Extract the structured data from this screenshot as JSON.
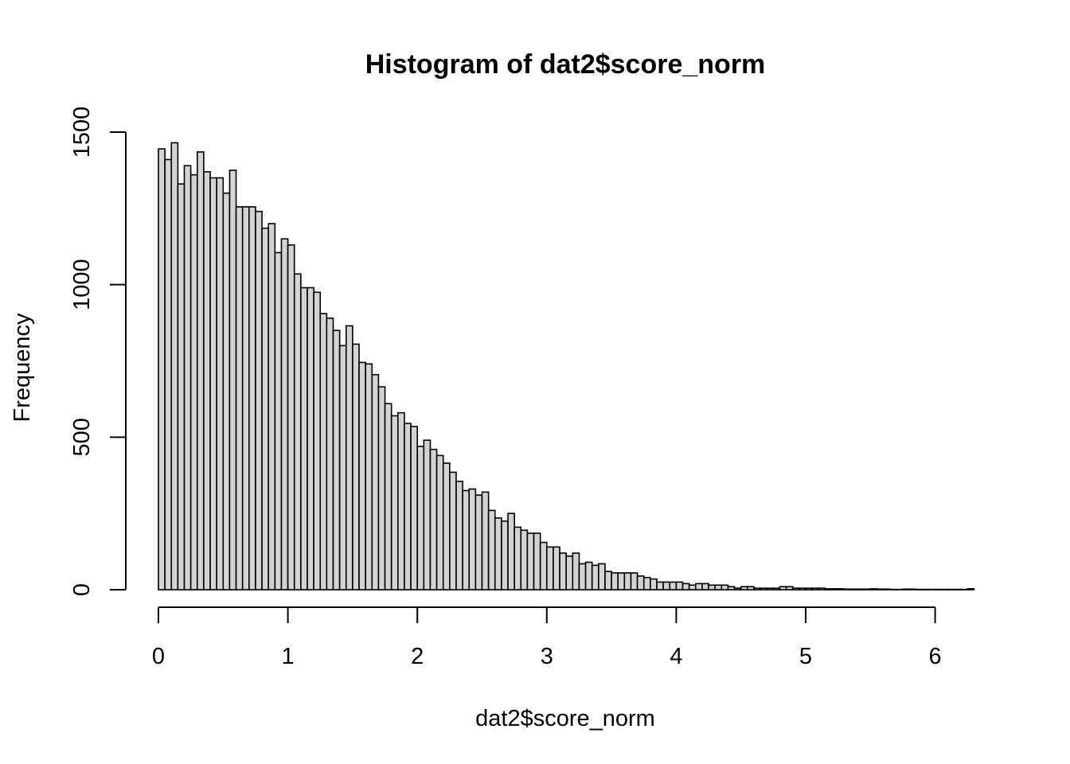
{
  "chart_data": {
    "type": "bar",
    "title": "Histogram of dat2$score_norm",
    "xlabel": "dat2$score_norm",
    "ylabel": "Frequency",
    "xlim": [
      0,
      6.3
    ],
    "ylim": [
      0,
      1500
    ],
    "bin_width": 0.05,
    "grid": false,
    "bar_fill": "#d3d3d3",
    "bar_stroke": "#000000",
    "x_ticks": [
      "0",
      "1",
      "2",
      "3",
      "4",
      "5",
      "6"
    ],
    "y_ticks": [
      "0",
      "500",
      "1000",
      "1500"
    ],
    "bins_start": [
      0.0,
      0.05,
      0.1,
      0.15,
      0.2,
      0.25,
      0.3,
      0.35,
      0.4,
      0.45,
      0.5,
      0.55,
      0.6,
      0.65,
      0.7,
      0.75,
      0.8,
      0.85,
      0.9,
      0.95,
      1.0,
      1.05,
      1.1,
      1.15,
      1.2,
      1.25,
      1.3,
      1.35,
      1.4,
      1.45,
      1.5,
      1.55,
      1.6,
      1.65,
      1.7,
      1.75,
      1.8,
      1.85,
      1.9,
      1.95,
      2.0,
      2.05,
      2.1,
      2.15,
      2.2,
      2.25,
      2.3,
      2.35,
      2.4,
      2.45,
      2.5,
      2.55,
      2.6,
      2.65,
      2.7,
      2.75,
      2.8,
      2.85,
      2.9,
      2.95,
      3.0,
      3.05,
      3.1,
      3.15,
      3.2,
      3.25,
      3.3,
      3.35,
      3.4,
      3.45,
      3.5,
      3.55,
      3.6,
      3.65,
      3.7,
      3.75,
      3.8,
      3.85,
      3.9,
      3.95,
      4.0,
      4.05,
      4.1,
      4.15,
      4.2,
      4.25,
      4.3,
      4.35,
      4.4,
      4.45,
      4.5,
      4.55,
      4.6,
      4.65,
      4.7,
      4.75,
      4.8,
      4.85,
      4.9,
      4.95,
      5.0,
      5.05,
      5.1,
      5.15,
      5.2,
      5.25,
      5.3,
      5.35,
      5.4,
      5.45,
      5.5,
      5.55,
      5.6,
      5.65,
      5.7,
      5.75,
      5.8,
      5.85,
      5.9,
      5.95,
      6.0,
      6.05,
      6.1,
      6.15,
      6.2,
      6.25
    ],
    "values": [
      1445,
      1410,
      1465,
      1330,
      1390,
      1360,
      1435,
      1370,
      1350,
      1350,
      1300,
      1375,
      1255,
      1255,
      1255,
      1240,
      1185,
      1200,
      1105,
      1150,
      1130,
      1035,
      990,
      990,
      975,
      905,
      890,
      850,
      800,
      865,
      805,
      745,
      740,
      705,
      665,
      610,
      570,
      580,
      545,
      535,
      470,
      490,
      460,
      440,
      415,
      385,
      355,
      325,
      330,
      310,
      320,
      260,
      235,
      225,
      250,
      205,
      195,
      185,
      185,
      155,
      140,
      140,
      120,
      110,
      120,
      85,
      90,
      80,
      85,
      60,
      55,
      55,
      55,
      55,
      45,
      40,
      35,
      25,
      25,
      25,
      25,
      20,
      15,
      20,
      20,
      15,
      15,
      15,
      10,
      5,
      10,
      10,
      5,
      5,
      5,
      5,
      10,
      10,
      5,
      5,
      5,
      5,
      5,
      3,
      3,
      3,
      2,
      2,
      2,
      2,
      3,
      2,
      2,
      1,
      1,
      2,
      2,
      1,
      1,
      1,
      1,
      1,
      1,
      1,
      1,
      3
    ]
  }
}
